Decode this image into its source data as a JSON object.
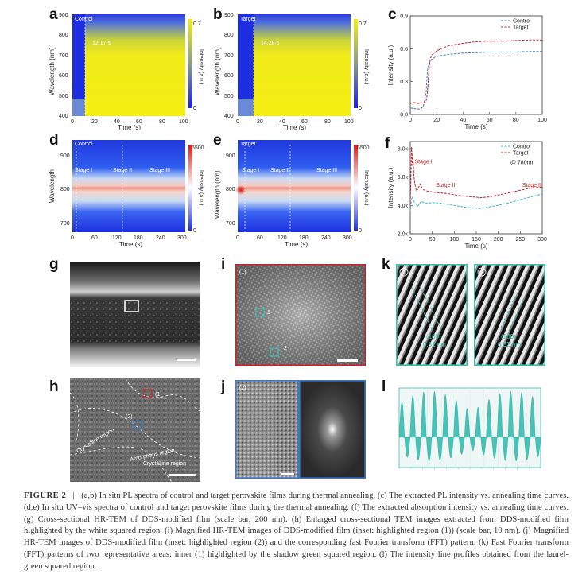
{
  "panel_letters": [
    "a",
    "b",
    "c",
    "d",
    "e",
    "f",
    "g",
    "h",
    "i",
    "j",
    "k",
    "l"
  ],
  "panel_a": {
    "title": "Control",
    "time_marker": "12.17 s",
    "ylabel": "Wavelength (nm)",
    "xlabel": "Time (s)",
    "yticks": [
      "400",
      "500",
      "600",
      "700",
      "800",
      "900"
    ],
    "xticks": [
      "0",
      "20",
      "40",
      "60",
      "80",
      "100"
    ],
    "cbar_label": "Intensity (a.u.)",
    "cbar_ticks": [
      "0.7",
      "0"
    ]
  },
  "panel_b": {
    "title": "Target",
    "time_marker": "14.28 s",
    "ylabel": "Wavelength (nm)",
    "xlabel": "Time (s)",
    "yticks": [
      "400",
      "500",
      "600",
      "700",
      "800",
      "900"
    ],
    "xticks": [
      "0",
      "20",
      "40",
      "60",
      "80",
      "100"
    ],
    "cbar_label": "Intensity (a.u.)",
    "cbar_ticks": [
      "0.7",
      "0"
    ]
  },
  "panel_d": {
    "title": "Control",
    "stages": [
      "Stage I",
      "Stage II",
      "Stage III"
    ],
    "ylabel": "Wavelength",
    "xlabel": "Time (s)",
    "yticks": [
      "700",
      "800",
      "900"
    ],
    "xticks": [
      "0",
      "60",
      "120",
      "180",
      "240",
      "300"
    ],
    "cbar_label": "Intensity (a.u.)",
    "cbar_ticks": [
      "6500",
      "0"
    ]
  },
  "panel_e": {
    "title": "Target",
    "stages": [
      "Stage I",
      "Stage II",
      "Stage III"
    ],
    "ylabel": "Wavelength (nm)",
    "xlabel": "Time (s)",
    "yticks": [
      "700",
      "800",
      "900"
    ],
    "xticks": [
      "0",
      "60",
      "120",
      "180",
      "240",
      "300"
    ],
    "cbar_label": "Intensity (a.u.)",
    "cbar_ticks": [
      "6500",
      "0"
    ]
  },
  "chart_data": [
    {
      "panel": "c",
      "type": "line",
      "xlabel": "Time (s)",
      "ylabel": "Intensity (a.u.)",
      "xlim": [
        0,
        100
      ],
      "ylim": [
        0,
        0.9
      ],
      "xticks": [
        "0",
        "20",
        "40",
        "60",
        "80",
        "100"
      ],
      "yticks": [
        "0.0",
        "0.3",
        "0.6",
        "0.9"
      ],
      "legend_position": "top-right",
      "series": [
        {
          "name": "Control",
          "color": "#3a78c9",
          "x": [
            0,
            5,
            8,
            10,
            12,
            13,
            14,
            15,
            16,
            18,
            20,
            25,
            30,
            40,
            50,
            60,
            70,
            80,
            90,
            100
          ],
          "y": [
            0.06,
            0.05,
            0.05,
            0.08,
            0.2,
            0.4,
            0.45,
            0.48,
            0.5,
            0.52,
            0.53,
            0.54,
            0.55,
            0.56,
            0.565,
            0.57,
            0.57,
            0.57,
            0.575,
            0.575
          ]
        },
        {
          "name": "Target",
          "color": "#c0282d",
          "x": [
            0,
            3,
            6,
            8,
            10,
            12,
            13,
            14,
            15,
            16,
            18,
            20,
            25,
            30,
            40,
            50,
            60,
            70,
            80,
            90,
            100
          ],
          "y": [
            0.1,
            0.11,
            0.1,
            0.11,
            0.1,
            0.12,
            0.2,
            0.38,
            0.5,
            0.54,
            0.56,
            0.58,
            0.61,
            0.63,
            0.65,
            0.665,
            0.67,
            0.67,
            0.675,
            0.68,
            0.68
          ]
        }
      ]
    },
    {
      "panel": "f",
      "type": "line",
      "xlabel": "Time (s)",
      "ylabel": "Intensity (a.u.)",
      "xlim": [
        0,
        300
      ],
      "ylim": [
        2000,
        8500
      ],
      "xticks": [
        "0",
        "50",
        "100",
        "150",
        "200",
        "250",
        "300"
      ],
      "yticks": [
        "2.0k",
        "4.0k",
        "6.0k",
        "8.0k"
      ],
      "legend_position": "top-right",
      "annotation": "@ 780nm",
      "stages": [
        "Stage I",
        "Stage II",
        "Stage III"
      ],
      "series": [
        {
          "name": "Control",
          "color": "#3fb3d6",
          "x": [
            0,
            2,
            4,
            6,
            8,
            12,
            16,
            20,
            25,
            30,
            40,
            50,
            70,
            100,
            130,
            160,
            190,
            220,
            250,
            280,
            300
          ],
          "y": [
            3600,
            4200,
            4600,
            4500,
            4300,
            4100,
            3950,
            4050,
            4300,
            4200,
            4150,
            4200,
            4150,
            4000,
            3850,
            3780,
            3950,
            4150,
            4400,
            4650,
            4800
          ]
        },
        {
          "name": "Target",
          "color": "#c0282d",
          "x": [
            0,
            2,
            3,
            4,
            5,
            6,
            8,
            10,
            14,
            18,
            22,
            26,
            30,
            40,
            60,
            80,
            110,
            140,
            160,
            180,
            210,
            240,
            270,
            300
          ],
          "y": [
            4000,
            6500,
            8100,
            7400,
            6800,
            7600,
            6200,
            5600,
            5000,
            5200,
            5500,
            5300,
            5100,
            5000,
            4900,
            4850,
            4700,
            4600,
            4550,
            4600,
            4800,
            5000,
            5200,
            5300
          ]
        }
      ]
    },
    {
      "panel": "l",
      "type": "line",
      "peaks": 13
    }
  ],
  "panel_g": {
    "label": "g"
  },
  "panel_h": {
    "region_1": "(1)",
    "region_2": "(2)",
    "regions": [
      "Crystalline region",
      "Amorphous region",
      "Crystalline region"
    ]
  },
  "panel_i": {
    "tag": "(1)",
    "marker_1": "1",
    "marker_2": "2"
  },
  "panel_j": {
    "tag": "(2)"
  },
  "panel_k": {
    "tags": [
      "1",
      "2"
    ],
    "plane": "(100)",
    "spacing": "0.32 nm"
  },
  "caption": {
    "figure_label": "FIGURE 2",
    "text": "(a,b) In situ PL spectra of control and target perovskite films during thermal annealing. (c) The extracted PL intensity vs. annealing time curves. (d,e) In situ UV–vis spectra of control and target perovskite films during the thermal annealing. (f) The extracted absorption intensity vs. annealing time curves. (g) Cross-sectional HR-TEM of DDS-modified film (scale bar, 200 nm). (h) Enlarged cross-sectional TEM images extracted from DDS-modified film highlighted by the white squared region. (i) Magnified HR-TEM images of DDS-modified film (inset: highlighted region (1)) (scale bar, 10 nm). (j) Magnified HR-TEM images of DDS-modified film (inset: highlighted region (2)) and the corresponding fast Fourier transform (FFT) pattern. (k) Fast Fourier transform (FFT) patterns of two representative areas: inner (1) highlighted by the shadow green squared region. (l) The intensity line profiles obtained from the laurel-green squared region."
  },
  "colors": {
    "control": "#3a78c9",
    "target": "#c0282d",
    "teal": "#3fbfb5",
    "frame_red": "#c0282d",
    "frame_blue": "#3a78c9"
  }
}
